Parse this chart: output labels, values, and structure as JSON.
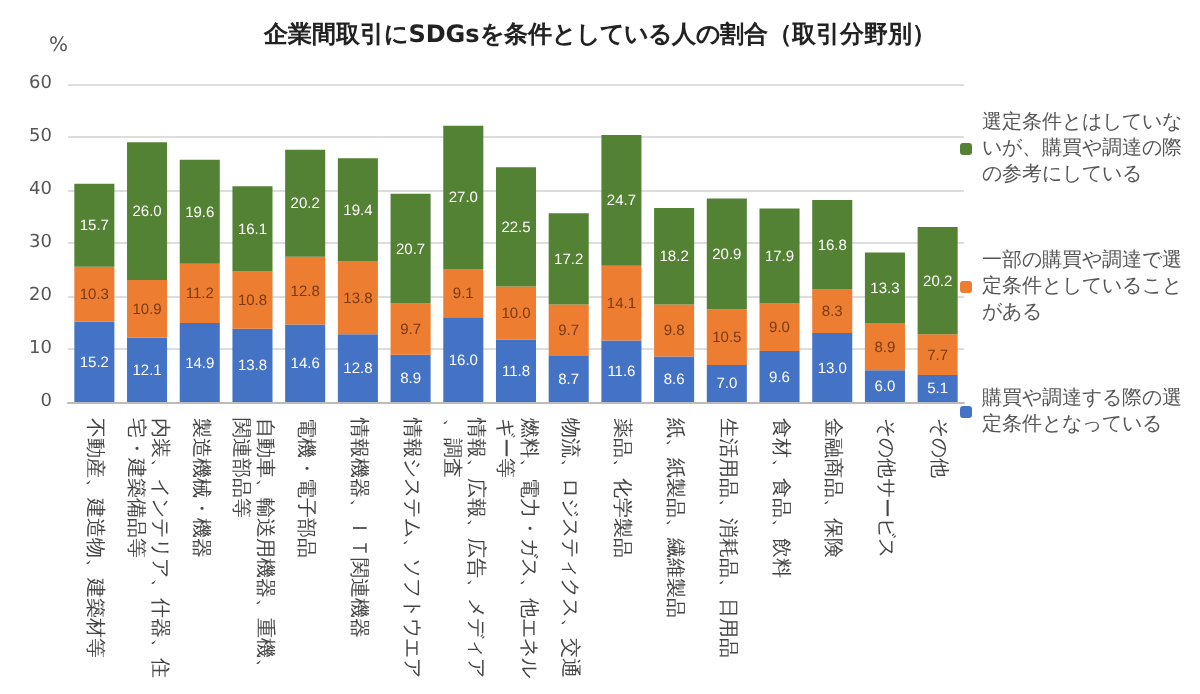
{
  "chart_data": {
    "type": "bar",
    "title": "企業間取引にSDGsを条件としている人の割合（取引分野別）",
    "ylabel": "%",
    "categories": [
      "不動産、建造物、建築材等",
      "内装、インテリア、什器、住宅・建築備品等",
      "製造機械・機器",
      "自動車、輸送用機器、重機、関連部品等",
      "電機・電子部品",
      "情報機器、ＩＴ関連機器",
      "情報システム、ソフトウエア",
      "情報、広報、広告、メディア、調査",
      "燃料、電力・ガス、他エネルギー等",
      "物流、ロジスティクス、交通",
      "薬品、化学製品",
      "紙、紙製品、繊維製品",
      "生活用品、消耗品、日用品",
      "食材、食品、飲料",
      "金融商品、保険",
      "その他サービス",
      "その他"
    ],
    "stacked": true,
    "series": [
      {
        "name": "購買や調達する際の選定条件となっている",
        "color": "#4472c4",
        "values": [
          15.2,
          12.1,
          14.9,
          13.8,
          14.6,
          12.8,
          8.9,
          16.0,
          11.8,
          8.7,
          11.6,
          8.6,
          7.0,
          9.6,
          13.0,
          6.0,
          5.1
        ],
        "value_labels": [
          "15.2",
          "12.1",
          "14.9",
          "13.8",
          "14.6",
          "12.8",
          "8.9",
          "16.0",
          "11.8",
          "8.7",
          "11.6",
          "8.6",
          "7.0",
          "9.6",
          "13.0",
          "6.0",
          "5.1"
        ]
      },
      {
        "name": "一部の購買や調達で選定条件としていることがある",
        "color": "#ed7d31",
        "values": [
          10.3,
          10.9,
          11.2,
          10.8,
          12.8,
          13.8,
          9.7,
          9.1,
          10.0,
          9.7,
          14.1,
          9.8,
          10.5,
          9.0,
          8.3,
          8.9,
          7.7
        ],
        "value_labels": [
          "10.3",
          "10.9",
          "11.2",
          "10.8",
          "12.8",
          "13.8",
          "9.7",
          "9.1",
          "10.0",
          "9.7",
          "14.1",
          "9.8",
          "10.5",
          "9.0",
          "8.3",
          "8.9",
          "7.7"
        ]
      },
      {
        "name": "選定条件とはしていないが、購買や調達の際の参考にしている",
        "color": "#548235",
        "values": [
          15.7,
          26.0,
          19.6,
          16.1,
          20.2,
          19.4,
          20.7,
          27.0,
          22.5,
          17.2,
          24.7,
          18.2,
          20.9,
          17.9,
          16.8,
          13.3,
          20.2
        ],
        "value_labels": [
          "15.7",
          "26.0",
          "19.6",
          "16.1",
          "20.2",
          "19.4",
          "20.7",
          "27.0",
          "22.5",
          "17.2",
          "24.7",
          "18.2",
          "20.9",
          "17.9",
          "16.8",
          "13.3",
          "20.2"
        ]
      }
    ],
    "ylim": [
      0,
      60
    ],
    "yticks": [
      0,
      10,
      20,
      30,
      40,
      50,
      60
    ],
    "grid": "y",
    "legend": "right"
  }
}
